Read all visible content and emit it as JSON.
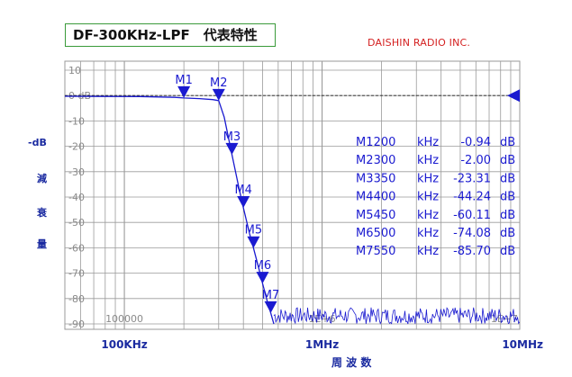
{
  "header": {
    "title": "DF-300KHz-LPF　代表特性",
    "brand": "DAISHIN RADIO INC."
  },
  "axis_labels": {
    "y_unit": "-dB",
    "y_chars": [
      "減",
      "衰",
      "量"
    ],
    "x_title": "周 波 数"
  },
  "colors": {
    "grid": "#9a9a9a",
    "plot_border": "#9a9a9a",
    "trace": "#1a1ad0",
    "marker": "#1a1ad0",
    "tick_text": "#8a8a8a",
    "table_text": "#1a1ad0",
    "label_blue": "#1a2aa0",
    "title_border": "#3a9a3a",
    "brand_red": "#d42020"
  },
  "chart_data": {
    "type": "line",
    "title": "DF-300KHz-LPF　代表特性",
    "xlabel": "周 波 数",
    "ylabel": "-dB 減衰量",
    "x_scale": "log",
    "xlim_hz": [
      50000,
      10000000
    ],
    "ylim": [
      -90,
      10
    ],
    "grid": true,
    "y_ticks": [
      10,
      0,
      -10,
      -20,
      -30,
      -40,
      -50,
      -60,
      -70,
      -80,
      -90
    ],
    "y_tick_labels": [
      "10",
      "0 dB",
      "-10",
      "-20",
      "-30",
      "-40",
      "-50",
      "-60",
      "-70",
      "-80",
      "-90"
    ],
    "x_axis_labels": [
      {
        "hz": 100000,
        "text": "100KHz"
      },
      {
        "hz": 1000000,
        "text": "1MHz"
      },
      {
        "hz": 10000000,
        "text": "10MHz"
      }
    ],
    "x_inner_labels": [
      {
        "hz": 100000,
        "text": "100000"
      },
      {
        "hz": 1000000,
        "text": "1E+6"
      },
      {
        "hz": 10000000,
        "text": "1E+7"
      }
    ],
    "reference_level_db": 0,
    "series": [
      {
        "x_hz": [
          50000,
          80000,
          120000,
          180000,
          200000,
          240000,
          280000,
          300000,
          320000,
          350000,
          380000,
          400000,
          430000,
          450000,
          480000,
          500000,
          530000,
          550000,
          570000
        ],
        "y_db": [
          -0.3,
          -0.35,
          -0.4,
          -0.7,
          -0.94,
          -1.2,
          -1.6,
          -2.0,
          -8.5,
          -23.31,
          -36.5,
          -44.24,
          -54.5,
          -60.11,
          -68.5,
          -74.08,
          -81.5,
          -85.7,
          -90
        ]
      }
    ],
    "markers": [
      {
        "label": "M1",
        "hz": 200000,
        "freq": "200",
        "unit": "kHz",
        "db": -0.94,
        "value": "-0.94",
        "db_unit": "dB"
      },
      {
        "label": "M2",
        "hz": 300000,
        "freq": "300",
        "unit": "kHz",
        "db": -2.0,
        "value": "-2.00",
        "db_unit": "dB"
      },
      {
        "label": "M3",
        "hz": 350000,
        "freq": "350",
        "unit": "kHz",
        "db": -23.31,
        "value": "-23.31",
        "db_unit": "dB"
      },
      {
        "label": "M4",
        "hz": 400000,
        "freq": "400",
        "unit": "kHz",
        "db": -44.24,
        "value": "-44.24",
        "db_unit": "dB"
      },
      {
        "label": "M5",
        "hz": 450000,
        "freq": "450",
        "unit": "kHz",
        "db": -60.11,
        "value": "-60.11",
        "db_unit": "dB"
      },
      {
        "label": "M6",
        "hz": 500000,
        "freq": "500",
        "unit": "kHz",
        "db": -74.08,
        "value": "-74.08",
        "db_unit": "dB"
      },
      {
        "label": "M7",
        "hz": 550000,
        "freq": "550",
        "unit": "kHz",
        "db": -85.7,
        "value": "-85.70",
        "db_unit": "dB"
      }
    ]
  }
}
